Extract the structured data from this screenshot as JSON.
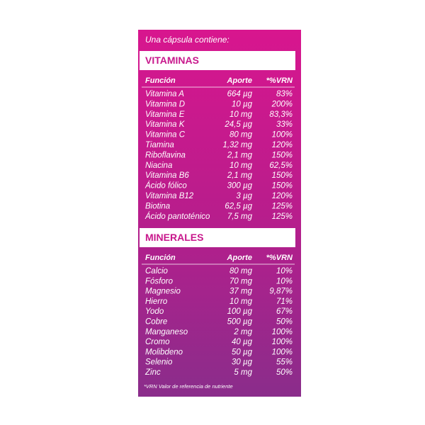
{
  "intro": "Una cápsula contiene:",
  "sections": [
    {
      "title": "VITAMINAS",
      "header": [
        "Función",
        "Aporte",
        "*%VRN"
      ],
      "rows": [
        [
          "Vitamina A",
          "664 µg",
          "83%"
        ],
        [
          "Vitamina D",
          "10 µg",
          "200%"
        ],
        [
          "Vitamina E",
          "10 mg",
          "83,3%"
        ],
        [
          "Vitamina K",
          "24,5 µg",
          "33%"
        ],
        [
          "Vitamina C",
          "80 mg",
          "100%"
        ],
        [
          "Tiamina",
          "1,32 mg",
          "120%"
        ],
        [
          "Riboflavina",
          "2,1 mg",
          "150%"
        ],
        [
          "Niacina",
          "10 mg",
          "62,5%"
        ],
        [
          "Vitamina B6",
          "2,1 mg",
          "150%"
        ],
        [
          "Ácido fólico",
          "300 µg",
          "150%"
        ],
        [
          "Vitamina B12",
          "3 µg",
          "120%"
        ],
        [
          "Biotina",
          "62,5 µg",
          "125%"
        ],
        [
          "Ácido pantoténico",
          "7,5 mg",
          "125%"
        ]
      ]
    },
    {
      "title": "MINERALES",
      "header": [
        "Función",
        "Aporte",
        "*%VRN"
      ],
      "rows": [
        [
          "Calcio",
          "80 mg",
          "10%"
        ],
        [
          "Fósforo",
          "70 mg",
          "10%"
        ],
        [
          "Magnesio",
          "37 mg",
          "9,87%"
        ],
        [
          "Hierro",
          "10 mg",
          "71%"
        ],
        [
          "Yodo",
          "100 µg",
          "67%"
        ],
        [
          "Cobre",
          "500 µg",
          "50%"
        ],
        [
          "Manganeso",
          "2 mg",
          "100%"
        ],
        [
          "Cromo",
          "40 µg",
          "100%"
        ],
        [
          "Molibdeno",
          "50 µg",
          "100%"
        ],
        [
          "Selenio",
          "30 µg",
          "55%"
        ],
        [
          "Zinc",
          "5 mg",
          "50%"
        ]
      ]
    }
  ],
  "footnote": "*VRN Valor de referencia de nutriente"
}
